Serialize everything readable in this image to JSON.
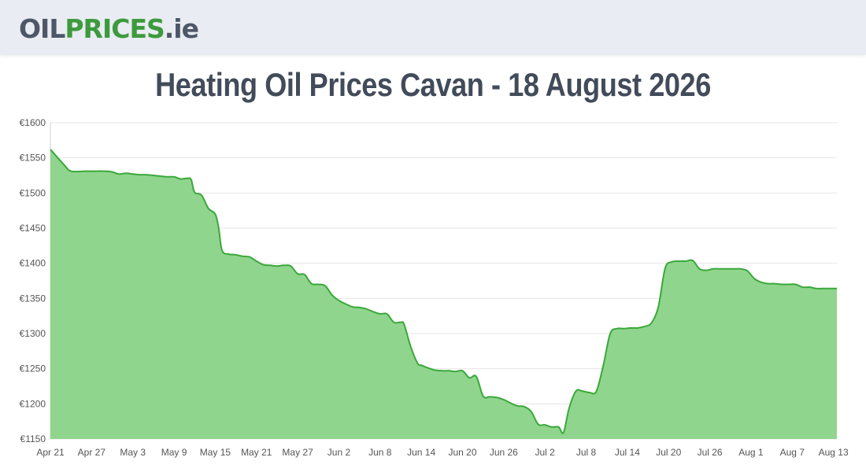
{
  "header": {
    "logo": {
      "oil": "OIL",
      "prices": "PRICES",
      "tld": ".ie"
    }
  },
  "colors": {
    "topbar": "#e9ecf2",
    "area_fill": "#90d58e",
    "line": "#3aa83a",
    "title": "#424b59"
  },
  "chart_data": {
    "type": "area",
    "title": "Heating Oil Prices Cavan - 18 August 2026",
    "xlabel": "",
    "ylabel": "",
    "ylim": [
      1150,
      1600
    ],
    "yticks": [
      1150,
      1200,
      1250,
      1300,
      1350,
      1400,
      1450,
      1500,
      1550,
      1600
    ],
    "ytick_prefix": "€",
    "xticks": [
      "Apr 21",
      "Apr 27",
      "May 3",
      "May 9",
      "May 15",
      "May 21",
      "May 27",
      "Jun 2",
      "Jun 8",
      "Jun 14",
      "Jun 20",
      "Jun 26",
      "Jul 2",
      "Jul 8",
      "Jul 14",
      "Jul 20",
      "Jul 26",
      "Aug 1",
      "Aug 7",
      "Aug 13"
    ],
    "grid": true,
    "legend": "none",
    "series": [
      {
        "values": [
          [
            0,
            1562
          ],
          [
            2,
            1540
          ],
          [
            3,
            1531
          ],
          [
            5,
            1531
          ],
          [
            6,
            1531
          ],
          [
            8,
            1531
          ],
          [
            9,
            1530
          ],
          [
            10,
            1527
          ],
          [
            11,
            1528
          ],
          [
            12,
            1527
          ],
          [
            13,
            1526
          ],
          [
            14,
            1526
          ],
          [
            15,
            1525
          ],
          [
            16,
            1524
          ],
          [
            17,
            1523
          ],
          [
            18,
            1523
          ],
          [
            19,
            1520
          ],
          [
            20,
            1521
          ],
          [
            20.5,
            1519
          ],
          [
            21,
            1501
          ],
          [
            22,
            1497
          ],
          [
            23,
            1478
          ],
          [
            24,
            1470
          ],
          [
            24.5,
            1450
          ],
          [
            25,
            1418
          ],
          [
            26,
            1413
          ],
          [
            27,
            1412
          ],
          [
            28,
            1410
          ],
          [
            29,
            1409
          ],
          [
            30,
            1403
          ],
          [
            31,
            1398
          ],
          [
            32,
            1397
          ],
          [
            33,
            1396
          ],
          [
            34,
            1397
          ],
          [
            35,
            1396
          ],
          [
            36,
            1385
          ],
          [
            37,
            1384
          ],
          [
            38,
            1371
          ],
          [
            39,
            1370
          ],
          [
            40,
            1368
          ],
          [
            41,
            1355
          ],
          [
            42,
            1347
          ],
          [
            43,
            1342
          ],
          [
            44,
            1338
          ],
          [
            45,
            1337
          ],
          [
            46,
            1335
          ],
          [
            47,
            1331
          ],
          [
            48,
            1328
          ],
          [
            49,
            1328
          ],
          [
            50,
            1316
          ],
          [
            51,
            1316
          ],
          [
            51.5,
            1313
          ],
          [
            52.5,
            1280
          ],
          [
            53.5,
            1257
          ],
          [
            54,
            1255
          ],
          [
            55,
            1251
          ],
          [
            56,
            1248
          ],
          [
            57,
            1247
          ],
          [
            58,
            1247
          ],
          [
            59,
            1246
          ],
          [
            60,
            1247
          ],
          [
            61,
            1237
          ],
          [
            62,
            1239
          ],
          [
            63,
            1211
          ],
          [
            64,
            1210
          ],
          [
            65,
            1209
          ],
          [
            66,
            1206
          ],
          [
            67,
            1201
          ],
          [
            68,
            1197
          ],
          [
            69,
            1196
          ],
          [
            70,
            1189
          ],
          [
            71,
            1171
          ],
          [
            72,
            1170
          ],
          [
            73,
            1167
          ],
          [
            74,
            1167
          ],
          [
            74.7,
            1159
          ],
          [
            75.5,
            1193
          ],
          [
            76.5,
            1218
          ],
          [
            77.5,
            1218
          ],
          [
            78.5,
            1216
          ],
          [
            79.5,
            1218
          ],
          [
            80.5,
            1255
          ],
          [
            81.5,
            1300
          ],
          [
            82.5,
            1307
          ],
          [
            83.5,
            1307
          ],
          [
            84.5,
            1308
          ],
          [
            85.5,
            1308
          ],
          [
            86.5,
            1310
          ],
          [
            87.5,
            1315
          ],
          [
            88.5,
            1338
          ],
          [
            89.5,
            1393
          ],
          [
            90.5,
            1402
          ],
          [
            91.5,
            1403
          ],
          [
            92.5,
            1403
          ],
          [
            93.5,
            1404
          ],
          [
            94.5,
            1392
          ],
          [
            95.5,
            1390
          ],
          [
            96.5,
            1392
          ],
          [
            97.5,
            1392
          ],
          [
            98.5,
            1392
          ],
          [
            99.5,
            1392
          ],
          [
            100.5,
            1392
          ],
          [
            101.5,
            1389
          ],
          [
            102.5,
            1378
          ],
          [
            103.5,
            1373
          ],
          [
            104.5,
            1371
          ],
          [
            105.5,
            1371
          ],
          [
            106.5,
            1370
          ],
          [
            107.5,
            1370
          ],
          [
            108.5,
            1370
          ],
          [
            109.5,
            1366
          ],
          [
            110.5,
            1366
          ],
          [
            111.5,
            1364
          ],
          [
            112.5,
            1364
          ],
          [
            113.5,
            1364
          ],
          [
            114.5,
            1364
          ]
        ]
      }
    ]
  }
}
